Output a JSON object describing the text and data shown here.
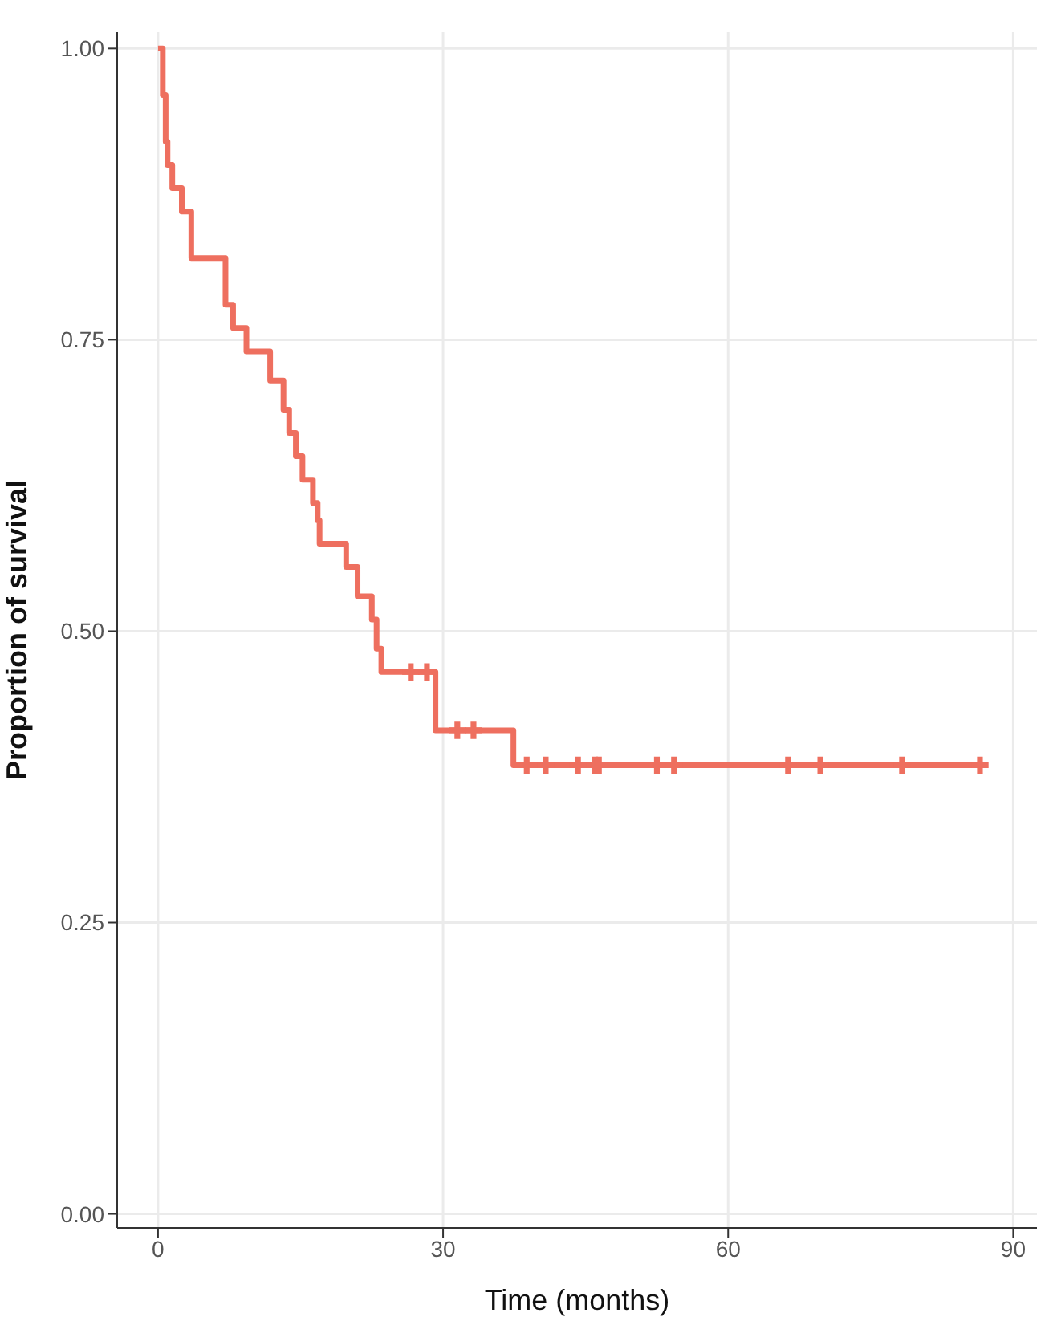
{
  "chart_data": {
    "type": "step",
    "xlabel": "Time (months)",
    "ylabel": "Proportion of survival",
    "xlim": [
      -4.3,
      92.5
    ],
    "xticks": [
      0,
      30,
      60,
      90
    ],
    "ylim": [
      -0.012,
      1.014
    ],
    "yticks": [
      {
        "value": 0,
        "label": "0.00"
      },
      {
        "value": 0.25,
        "label": "0.25"
      },
      {
        "value": 0.5,
        "label": "0.50"
      },
      {
        "value": 0.75,
        "label": "0.75"
      },
      {
        "value": 1,
        "label": "1.00"
      }
    ],
    "grid": true,
    "line_style": "solid",
    "series": [
      {
        "color": "#ee6f5f",
        "x": [
          0,
          0.5,
          0.8,
          1.0,
          1.5,
          2.5,
          3.5,
          7.1,
          7.9,
          9.3,
          11.8,
          13.2,
          13.8,
          14.5,
          15.2,
          16.3,
          16.8,
          17.0,
          19.8,
          21.0,
          22.5,
          23.0,
          23.5,
          29.2,
          37.4,
          86.5
        ],
        "values": [
          1.0,
          0.96,
          0.92,
          0.9,
          0.88,
          0.86,
          0.82,
          0.78,
          0.76,
          0.74,
          0.715,
          0.69,
          0.67,
          0.65,
          0.63,
          0.61,
          0.595,
          0.575,
          0.555,
          0.53,
          0.51,
          0.485,
          0.465,
          0.415,
          0.385,
          0.385
        ]
      },
      {
        "type": "scatter",
        "marker": "cross",
        "color": "#ee6f5f",
        "x": [
          26.6,
          28.3,
          31.5,
          33.2,
          38.8,
          40.8,
          44.2,
          46.0,
          46.4,
          52.5,
          54.3,
          66.3,
          69.7,
          78.3,
          86.5
        ],
        "values": [
          0.465,
          0.465,
          0.415,
          0.415,
          0.385,
          0.385,
          0.385,
          0.385,
          0.385,
          0.385,
          0.385,
          0.385,
          0.385,
          0.385,
          0.385
        ]
      }
    ]
  }
}
